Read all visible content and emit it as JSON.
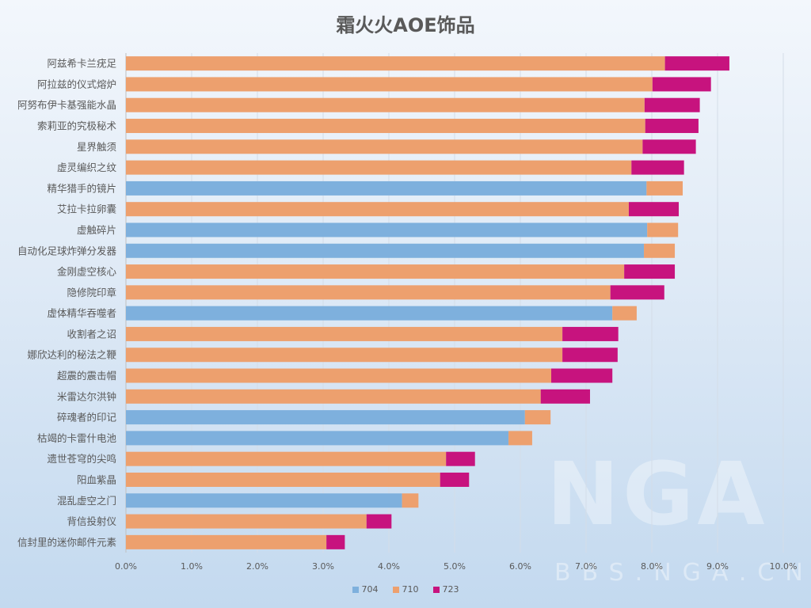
{
  "chart_data": {
    "type": "bar",
    "orientation": "horizontal",
    "stacked": true,
    "title": "霜火火AOE饰品",
    "categories": [
      "阿兹希卡兰疣足",
      "阿拉兹的仪式熔炉",
      "阿努布伊卡基强能水晶",
      "索莉亚的究极秘术",
      "星界触须",
      "虚灵编织之纹",
      "精华猎手的镜片",
      "艾拉卡拉卵囊",
      "虚触碎片",
      "自动化足球炸弹分发器",
      "金刚虚空核心",
      "隐修院印章",
      "虚体精华吞噬者",
      "收割者之诏",
      "娜欣达利的秘法之鞭",
      "超震的震击帽",
      "米雷达尔洪钟",
      "碎魂者的印记",
      "枯竭的卡雷什电池",
      "遗世苍穹的尖鸣",
      "阳血紫晶",
      "混乱虚空之门",
      "背信投射仪",
      "信封里的迷你邮件元素"
    ],
    "series": [
      {
        "name": "704",
        "color": "#7eb0dd",
        "values": [
          0,
          0,
          0,
          0,
          0,
          0,
          7.92,
          0,
          7.93,
          7.88,
          0,
          0,
          7.4,
          0,
          0,
          0,
          0,
          6.07,
          5.82,
          0,
          0,
          4.2,
          0,
          0
        ]
      },
      {
        "name": "710",
        "color": "#eda06e",
        "values": [
          8.2,
          8.01,
          7.89,
          7.9,
          7.86,
          7.69,
          0.55,
          7.65,
          0.47,
          0.47,
          7.58,
          7.37,
          0.37,
          6.64,
          6.64,
          6.47,
          6.31,
          0.39,
          0.36,
          4.87,
          4.78,
          0.25,
          3.66,
          3.05
        ]
      },
      {
        "name": "723",
        "color": "#c7137e",
        "values": [
          0.98,
          0.89,
          0.84,
          0.81,
          0.81,
          0.8,
          0,
          0.76,
          0,
          0,
          0.77,
          0.82,
          0,
          0.85,
          0.84,
          0.93,
          0.75,
          0,
          0,
          0.44,
          0.44,
          0,
          0.38,
          0.28
        ]
      }
    ],
    "xlim": [
      0,
      10
    ],
    "xticks": [
      "0.0%",
      "1.0%",
      "2.0%",
      "3.0%",
      "4.0%",
      "5.0%",
      "6.0%",
      "7.0%",
      "8.0%",
      "9.0%",
      "10.0%"
    ],
    "grid": true,
    "legend": "bottom"
  },
  "watermark": {
    "logo": "NGA",
    "site": "BBS.NGA.CN"
  }
}
